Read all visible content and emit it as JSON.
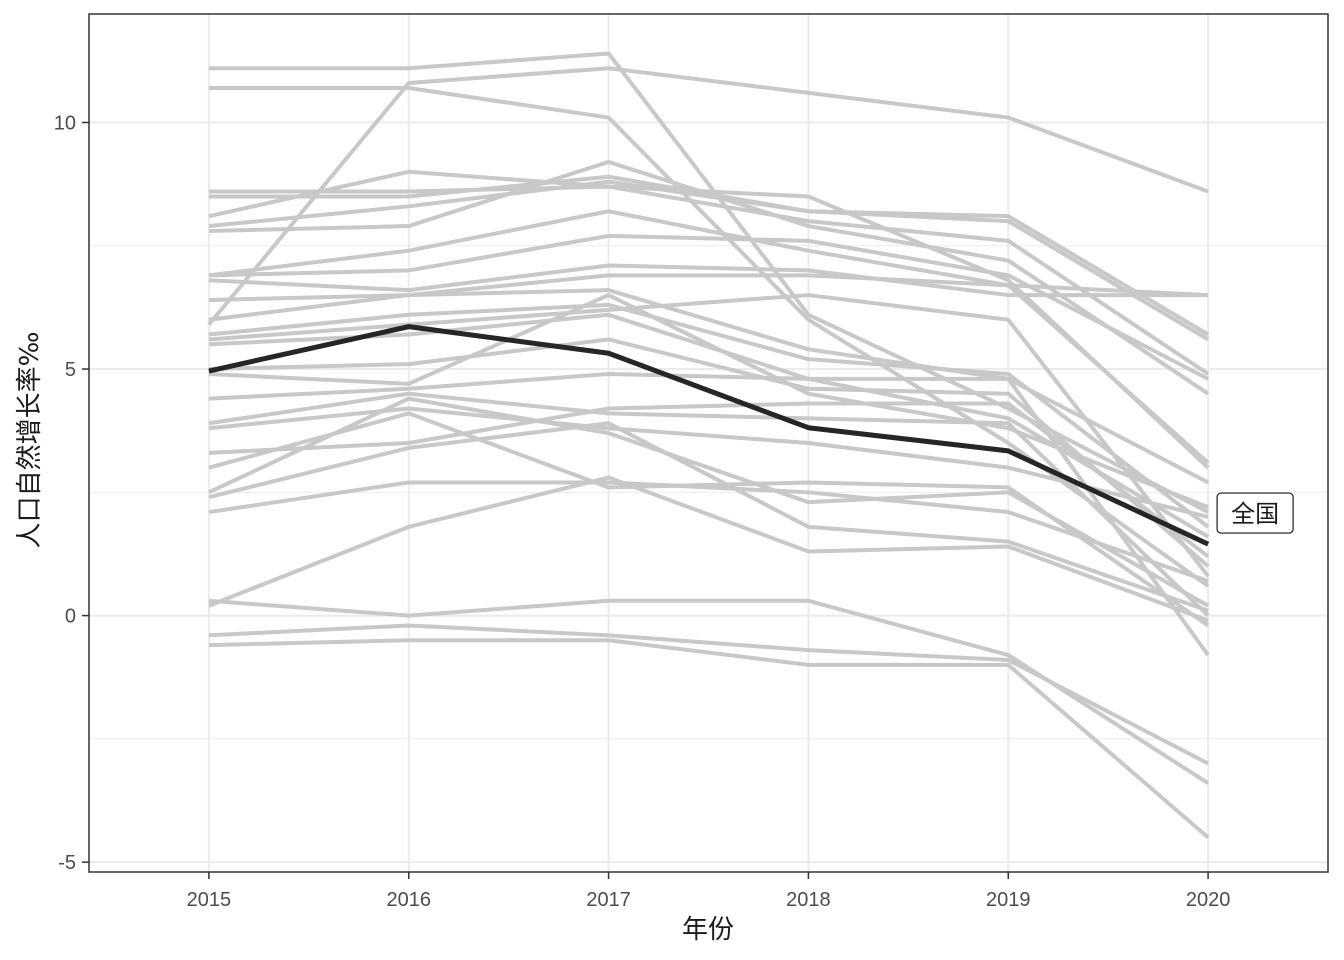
{
  "chart_data": {
    "type": "line",
    "title": "",
    "xlabel": "年份",
    "ylabel": "人口自然增长率‰",
    "x": [
      2015,
      2016,
      2017,
      2018,
      2019,
      2020
    ],
    "xlim": [
      2014.4,
      2020.6
    ],
    "ylim": [
      -5.2,
      12.2
    ],
    "x_ticks": [
      "2015",
      "2016",
      "2017",
      "2018",
      "2019",
      "2020"
    ],
    "y_ticks": [
      {
        "value": -5,
        "label": "-5"
      },
      {
        "value": 0,
        "label": "0"
      },
      {
        "value": 5,
        "label": "5"
      },
      {
        "value": 10,
        "label": "10"
      }
    ],
    "grid": true,
    "legend": "none",
    "background_color": "#ffffff",
    "grid_color": "#ebebeb",
    "panel_border_color": "#333333",
    "highlight_color": "#262626",
    "series_color": "#c8c8c8",
    "highlight": {
      "name": "全国",
      "label": "全国",
      "values": [
        4.96,
        5.86,
        5.32,
        3.81,
        3.34,
        1.45
      ]
    },
    "series": [
      {
        "values": [
          11.1,
          11.1,
          11.4,
          6.1,
          4.2,
          2.1
        ]
      },
      {
        "values": [
          10.7,
          10.7,
          10.1,
          6.0,
          3.5,
          0.6
        ]
      },
      {
        "values": [
          5.9,
          10.8,
          11.1,
          10.6,
          10.1,
          8.6
        ]
      },
      {
        "values": [
          8.6,
          8.6,
          8.7,
          8.5,
          6.8,
          3.0
        ]
      },
      {
        "values": [
          8.5,
          8.5,
          8.9,
          8.2,
          8.1,
          5.7
        ]
      },
      {
        "values": [
          7.9,
          8.3,
          8.8,
          8.2,
          8.0,
          5.6
        ]
      },
      {
        "values": [
          8.1,
          9.0,
          8.7,
          8.0,
          7.6,
          4.9
        ]
      },
      {
        "values": [
          7.8,
          7.9,
          9.2,
          7.9,
          7.2,
          4.5
        ]
      },
      {
        "values": [
          6.9,
          7.4,
          8.2,
          7.4,
          6.7,
          3.1
        ]
      },
      {
        "values": [
          6.9,
          7.0,
          7.7,
          7.6,
          6.9,
          4.8
        ]
      },
      {
        "values": [
          6.8,
          6.6,
          7.1,
          7.0,
          6.5,
          6.5
        ]
      },
      {
        "values": [
          6.4,
          6.5,
          6.9,
          6.9,
          6.7,
          6.5
        ]
      },
      {
        "values": [
          6.0,
          6.5,
          6.6,
          5.4,
          4.8,
          2.7
        ]
      },
      {
        "values": [
          5.7,
          6.1,
          6.3,
          5.2,
          4.9,
          1.8
        ]
      },
      {
        "values": [
          5.6,
          5.9,
          6.2,
          6.5,
          6.0,
          0.8
        ]
      },
      {
        "values": [
          5.5,
          5.7,
          6.1,
          4.8,
          4.0,
          1.6
        ]
      },
      {
        "values": [
          5.0,
          5.1,
          5.6,
          4.6,
          4.5,
          1.0
        ]
      },
      {
        "values": [
          4.9,
          4.7,
          6.5,
          4.5,
          3.8,
          2.2
        ]
      },
      {
        "values": [
          4.4,
          4.6,
          4.9,
          4.8,
          4.8,
          -0.8
        ]
      },
      {
        "values": [
          3.9,
          4.5,
          4.1,
          4.0,
          3.9,
          0.0
        ]
      },
      {
        "values": [
          3.8,
          4.2,
          3.8,
          3.5,
          3.0,
          2.0
        ]
      },
      {
        "values": [
          3.3,
          3.5,
          4.2,
          4.3,
          4.3,
          1.2
        ]
      },
      {
        "values": [
          3.0,
          4.1,
          2.6,
          2.7,
          2.6,
          -0.2
        ]
      },
      {
        "values": [
          2.5,
          4.4,
          3.7,
          2.3,
          2.5,
          0.2
        ]
      },
      {
        "values": [
          2.4,
          3.4,
          3.9,
          1.8,
          1.5,
          0.1
        ]
      },
      {
        "values": [
          2.1,
          2.7,
          2.7,
          2.5,
          2.1,
          0.7
        ]
      },
      {
        "values": [
          0.2,
          1.8,
          2.8,
          1.3,
          1.4,
          -0.1
        ]
      },
      {
        "values": [
          0.3,
          0.0,
          0.3,
          0.3,
          -0.8,
          -3.4
        ]
      },
      {
        "values": [
          -0.4,
          -0.2,
          -0.4,
          -0.7,
          -0.9,
          -3.0
        ]
      },
      {
        "values": [
          -0.6,
          -0.5,
          -0.5,
          -1.0,
          -1.0,
          -4.5
        ]
      }
    ]
  }
}
